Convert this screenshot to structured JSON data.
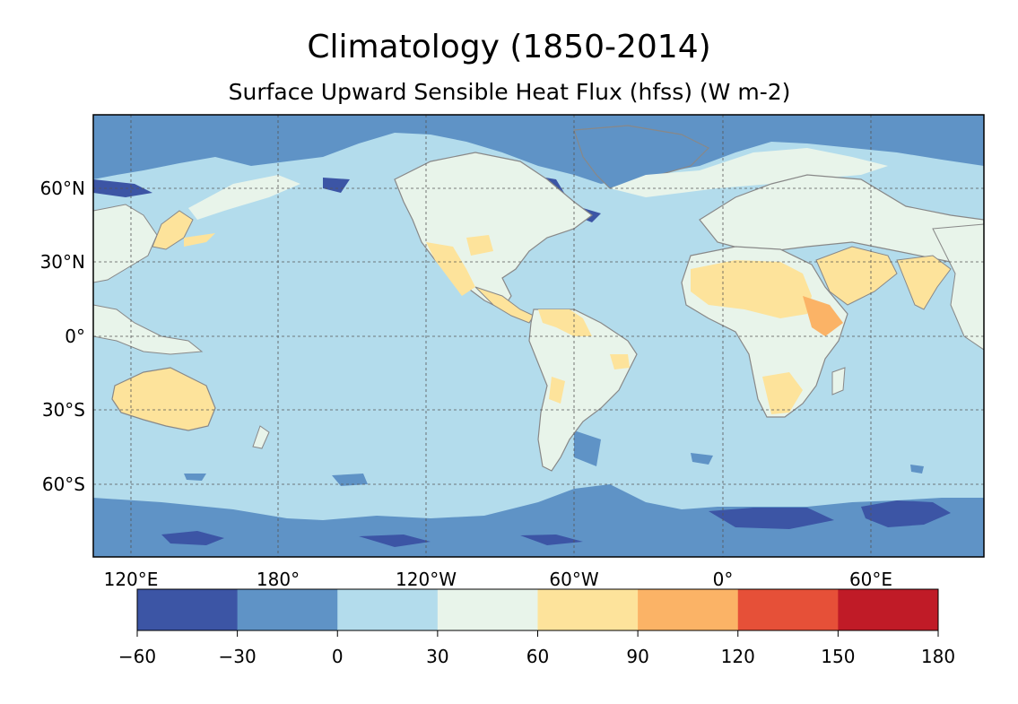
{
  "title": "Climatology (1850-2014)",
  "subtitle": "Surface Upward Sensible Heat Flux (hfss) (W m-2)",
  "map": {
    "projection": "PlateCarree",
    "central_longitude": "centered near 150°W",
    "gridlines": true,
    "coastlines": true,
    "borders": true,
    "lat_ticks": [
      "60°N",
      "30°N",
      "0°",
      "30°S",
      "60°S"
    ],
    "lon_ticks": [
      "120°E",
      "180°",
      "120°W",
      "60°W",
      "0°",
      "60°E"
    ]
  },
  "colorbar": {
    "orientation": "horizontal",
    "placement": "bottom",
    "levels": [
      -60,
      -30,
      0,
      30,
      60,
      90,
      120,
      150,
      180
    ],
    "tick_labels": [
      "−60",
      "−30",
      "0",
      "30",
      "60",
      "90",
      "120",
      "150",
      "180"
    ],
    "colors": [
      "#3c55a5",
      "#5f93c6",
      "#b3dcec",
      "#e8f4ea",
      "#fde39b",
      "#fbb366",
      "#e65038",
      "#c01b27"
    ]
  },
  "palette": {
    "ocean": "#b3dcec",
    "polar": "#5f93c6",
    "deep_cold": "#3c55a5",
    "land_mild": "#e8f4ea",
    "land_warm": "#fde39b",
    "land_hot": "#fbb366",
    "coast": "#888888"
  }
}
